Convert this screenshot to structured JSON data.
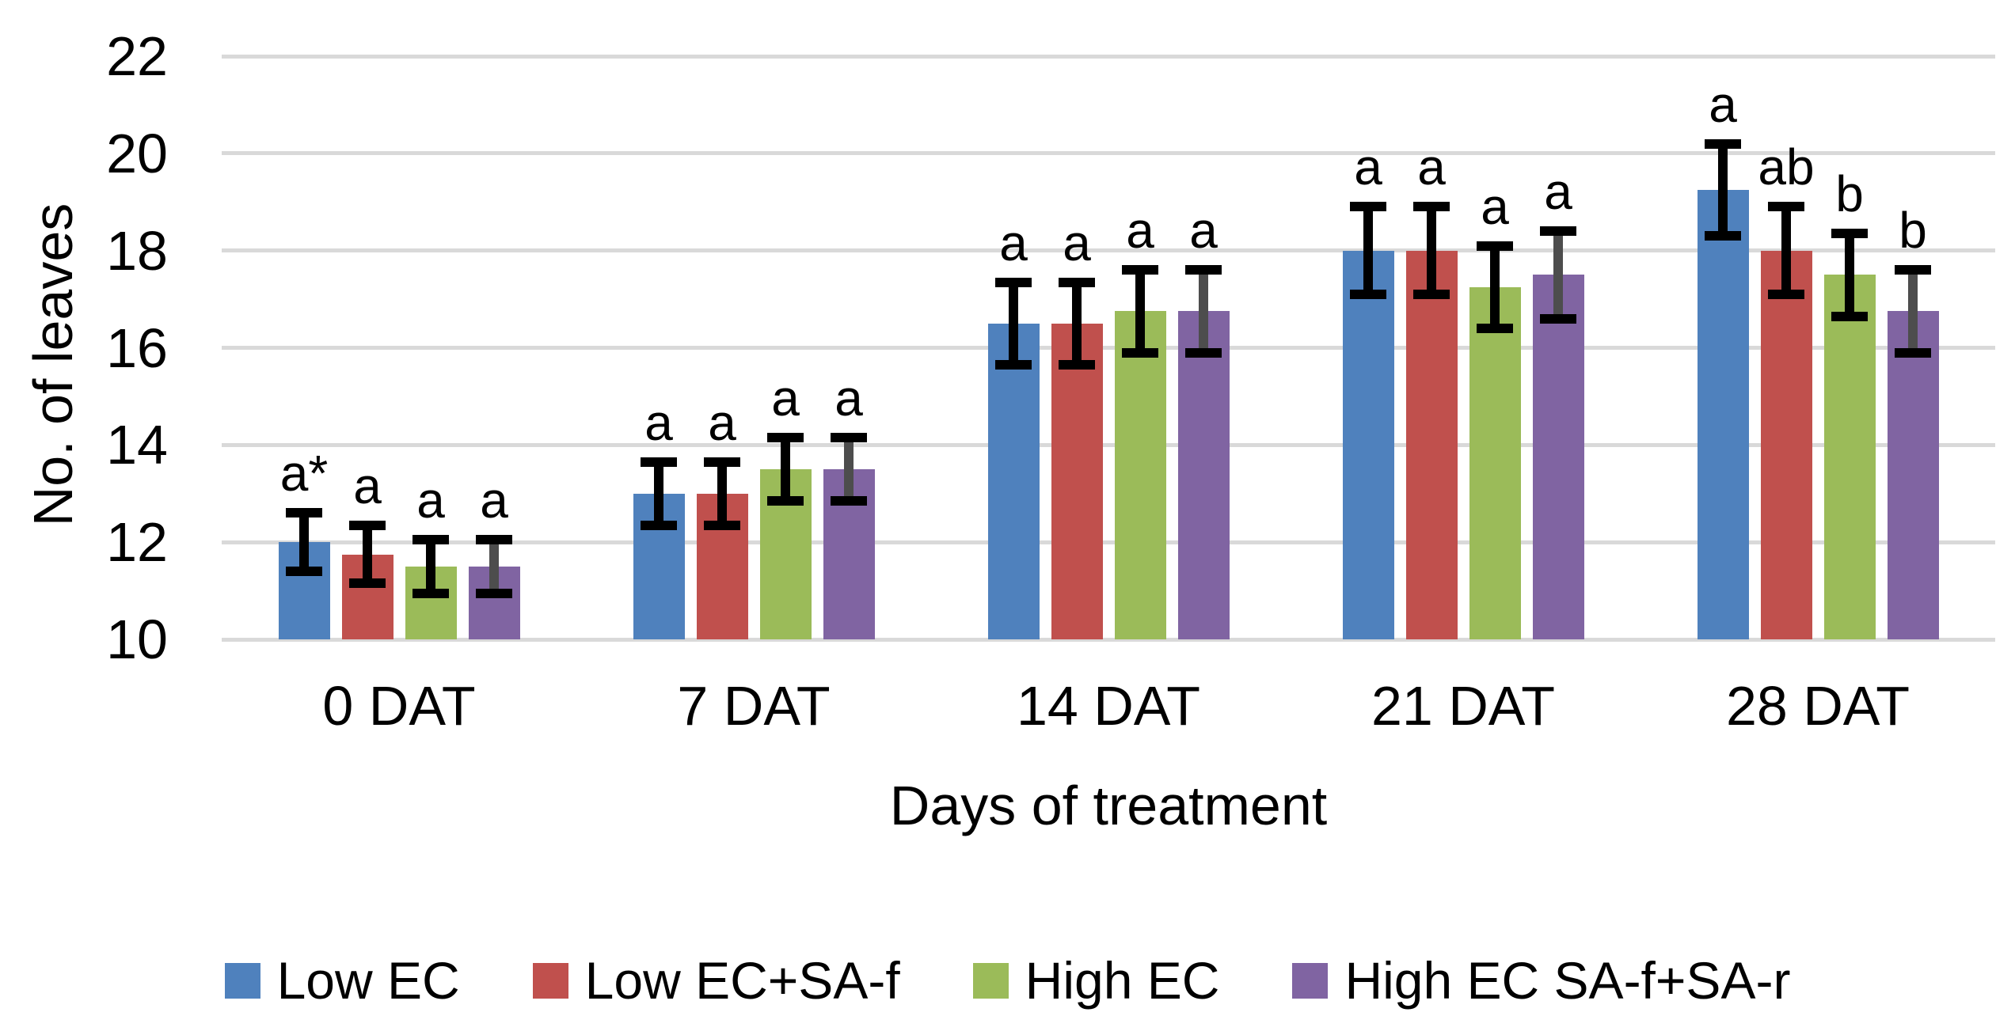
{
  "chart_data": {
    "type": "bar",
    "title": "",
    "ylabel": "No. of leaves",
    "xlabel": "Days of treatment",
    "ylim": [
      10,
      22
    ],
    "yticks": [
      10,
      12,
      14,
      16,
      18,
      20,
      22
    ],
    "grid": true,
    "gridline_color": "#D9D9D9",
    "background_color": "#FFFFFF",
    "text_color": "#000000",
    "error_cap_color": "#000000",
    "legend_position": "bottom",
    "categories": [
      "0 DAT",
      "7 DAT",
      "14 DAT",
      "21 DAT",
      "28 DAT"
    ],
    "series": [
      {
        "name": "Low EC",
        "color": "#4F81BD",
        "error_line_color": "#000000",
        "values": [
          12.0,
          13.0,
          16.5,
          18.0,
          19.25
        ],
        "errors": [
          0.6,
          0.65,
          0.85,
          0.9,
          0.95
        ],
        "sig_letters": [
          "a*",
          "a",
          "a",
          "a",
          "a"
        ]
      },
      {
        "name": "Low EC+SA-f",
        "color": "#C0504D",
        "error_line_color": "#000000",
        "values": [
          11.75,
          13.0,
          16.5,
          18.0,
          18.0
        ],
        "errors": [
          0.6,
          0.65,
          0.85,
          0.9,
          0.9
        ],
        "sig_letters": [
          "a",
          "a",
          "a",
          "a",
          "ab"
        ]
      },
      {
        "name": "High EC",
        "color": "#9BBB59",
        "error_line_color": "#000000",
        "values": [
          11.5,
          13.5,
          16.75,
          17.25,
          17.5
        ],
        "errors": [
          0.55,
          0.65,
          0.85,
          0.85,
          0.85
        ],
        "sig_letters": [
          "a",
          "a",
          "a",
          "a",
          "b"
        ]
      },
      {
        "name": "High EC SA-f+SA-r",
        "color": "#8064A2",
        "error_line_color": "#4D4D4D",
        "values": [
          11.5,
          13.5,
          16.75,
          17.5,
          16.75
        ],
        "errors": [
          0.55,
          0.65,
          0.85,
          0.9,
          0.85
        ],
        "sig_letters": [
          "a",
          "a",
          "a",
          "a",
          "b"
        ]
      }
    ]
  }
}
